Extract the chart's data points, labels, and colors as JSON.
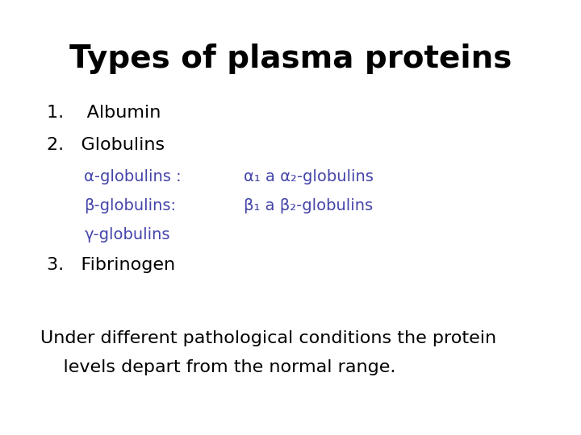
{
  "title": "Types of plasma proteins",
  "title_fontsize": 28,
  "title_color": "#000000",
  "title_weight": "bold",
  "bg_color": "#ffffff",
  "text_color": "#000000",
  "blue_color": "#4444aa",
  "item1": "1.    Albumin",
  "item2": "2.   Globulins",
  "item3": "3.   Fibrinogen",
  "alpha_left": "α-globulins :",
  "alpha_right": "α₁ a α₂-globulins",
  "beta_left": "β-globulins:",
  "beta_right": "β₁ a β₂-globulins",
  "gamma_left": "γ-globulins",
  "footer1": "Under different pathological conditions the protein",
  "footer2": "    levels depart from the normal range.",
  "main_fontsize": 16,
  "sub_fontsize": 14,
  "footer_fontsize": 16
}
